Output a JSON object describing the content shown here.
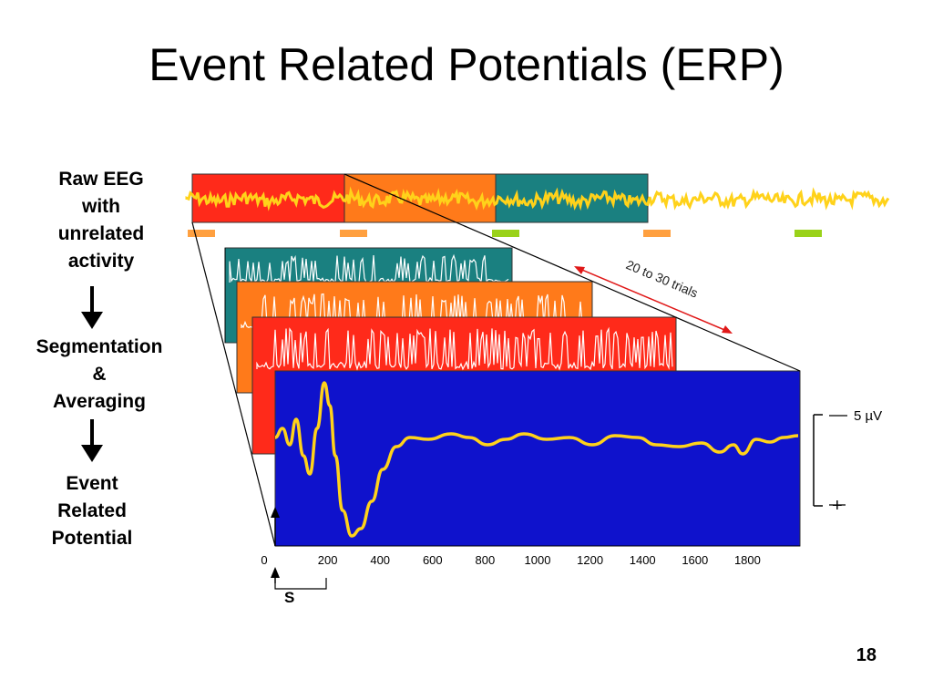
{
  "slide": {
    "title": "Event Related Potentials (ERP)",
    "page_number": "18"
  },
  "labels": {
    "raw_eeg": [
      "Raw EEG",
      "with",
      "unrelated",
      "activity"
    ],
    "segmentation": [
      "Segmentation",
      "&",
      "Averaging"
    ],
    "erp": [
      "Event",
      "Related",
      "Potential"
    ]
  },
  "diagram": {
    "trials_label": "20 to 30 trials",
    "scale_label": "5 µV",
    "stimulus_label": "S",
    "plus_label": "+",
    "colors": {
      "red": "#ff2a1a",
      "orange": "#ff7a1a",
      "teal": "#1a8080",
      "blue": "#0f12cc",
      "eeg_yellow": "#ffd21a",
      "marker_green": "#9ad21a",
      "marker_orange": "#ffa040"
    },
    "x_ticks": [
      "0",
      "200",
      "400",
      "600",
      "800",
      "1000",
      "1200",
      "1400",
      "1600",
      "1800"
    ]
  }
}
